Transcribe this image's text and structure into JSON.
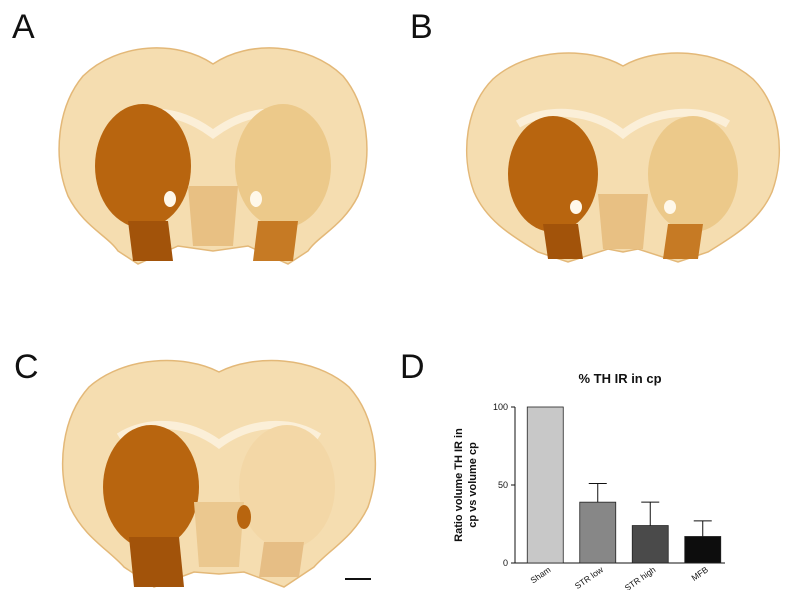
{
  "panels": {
    "a": "A",
    "b": "B",
    "c": "C",
    "d": "D"
  },
  "colors": {
    "tissue_light": "#f5ddb0",
    "tissue_mid": "#ecc98a",
    "tissue_dark": "#b8650f",
    "tissue_darker": "#a2530a"
  },
  "chart_data": {
    "type": "bar",
    "title": "% TH IR in cp",
    "ylabel_lines": [
      "Ratio volume TH IR in",
      "cp vs volume cp"
    ],
    "categories": [
      "Sham",
      "STR low",
      "STR high",
      "MFB"
    ],
    "values": [
      100,
      39,
      24,
      17
    ],
    "errors": [
      0,
      12,
      15,
      10
    ],
    "colors": [
      "#c8c8c8",
      "#878787",
      "#4a4a4a",
      "#0d0d0d"
    ],
    "ylim": [
      0,
      100
    ],
    "yticks": [
      0,
      50,
      100
    ]
  }
}
